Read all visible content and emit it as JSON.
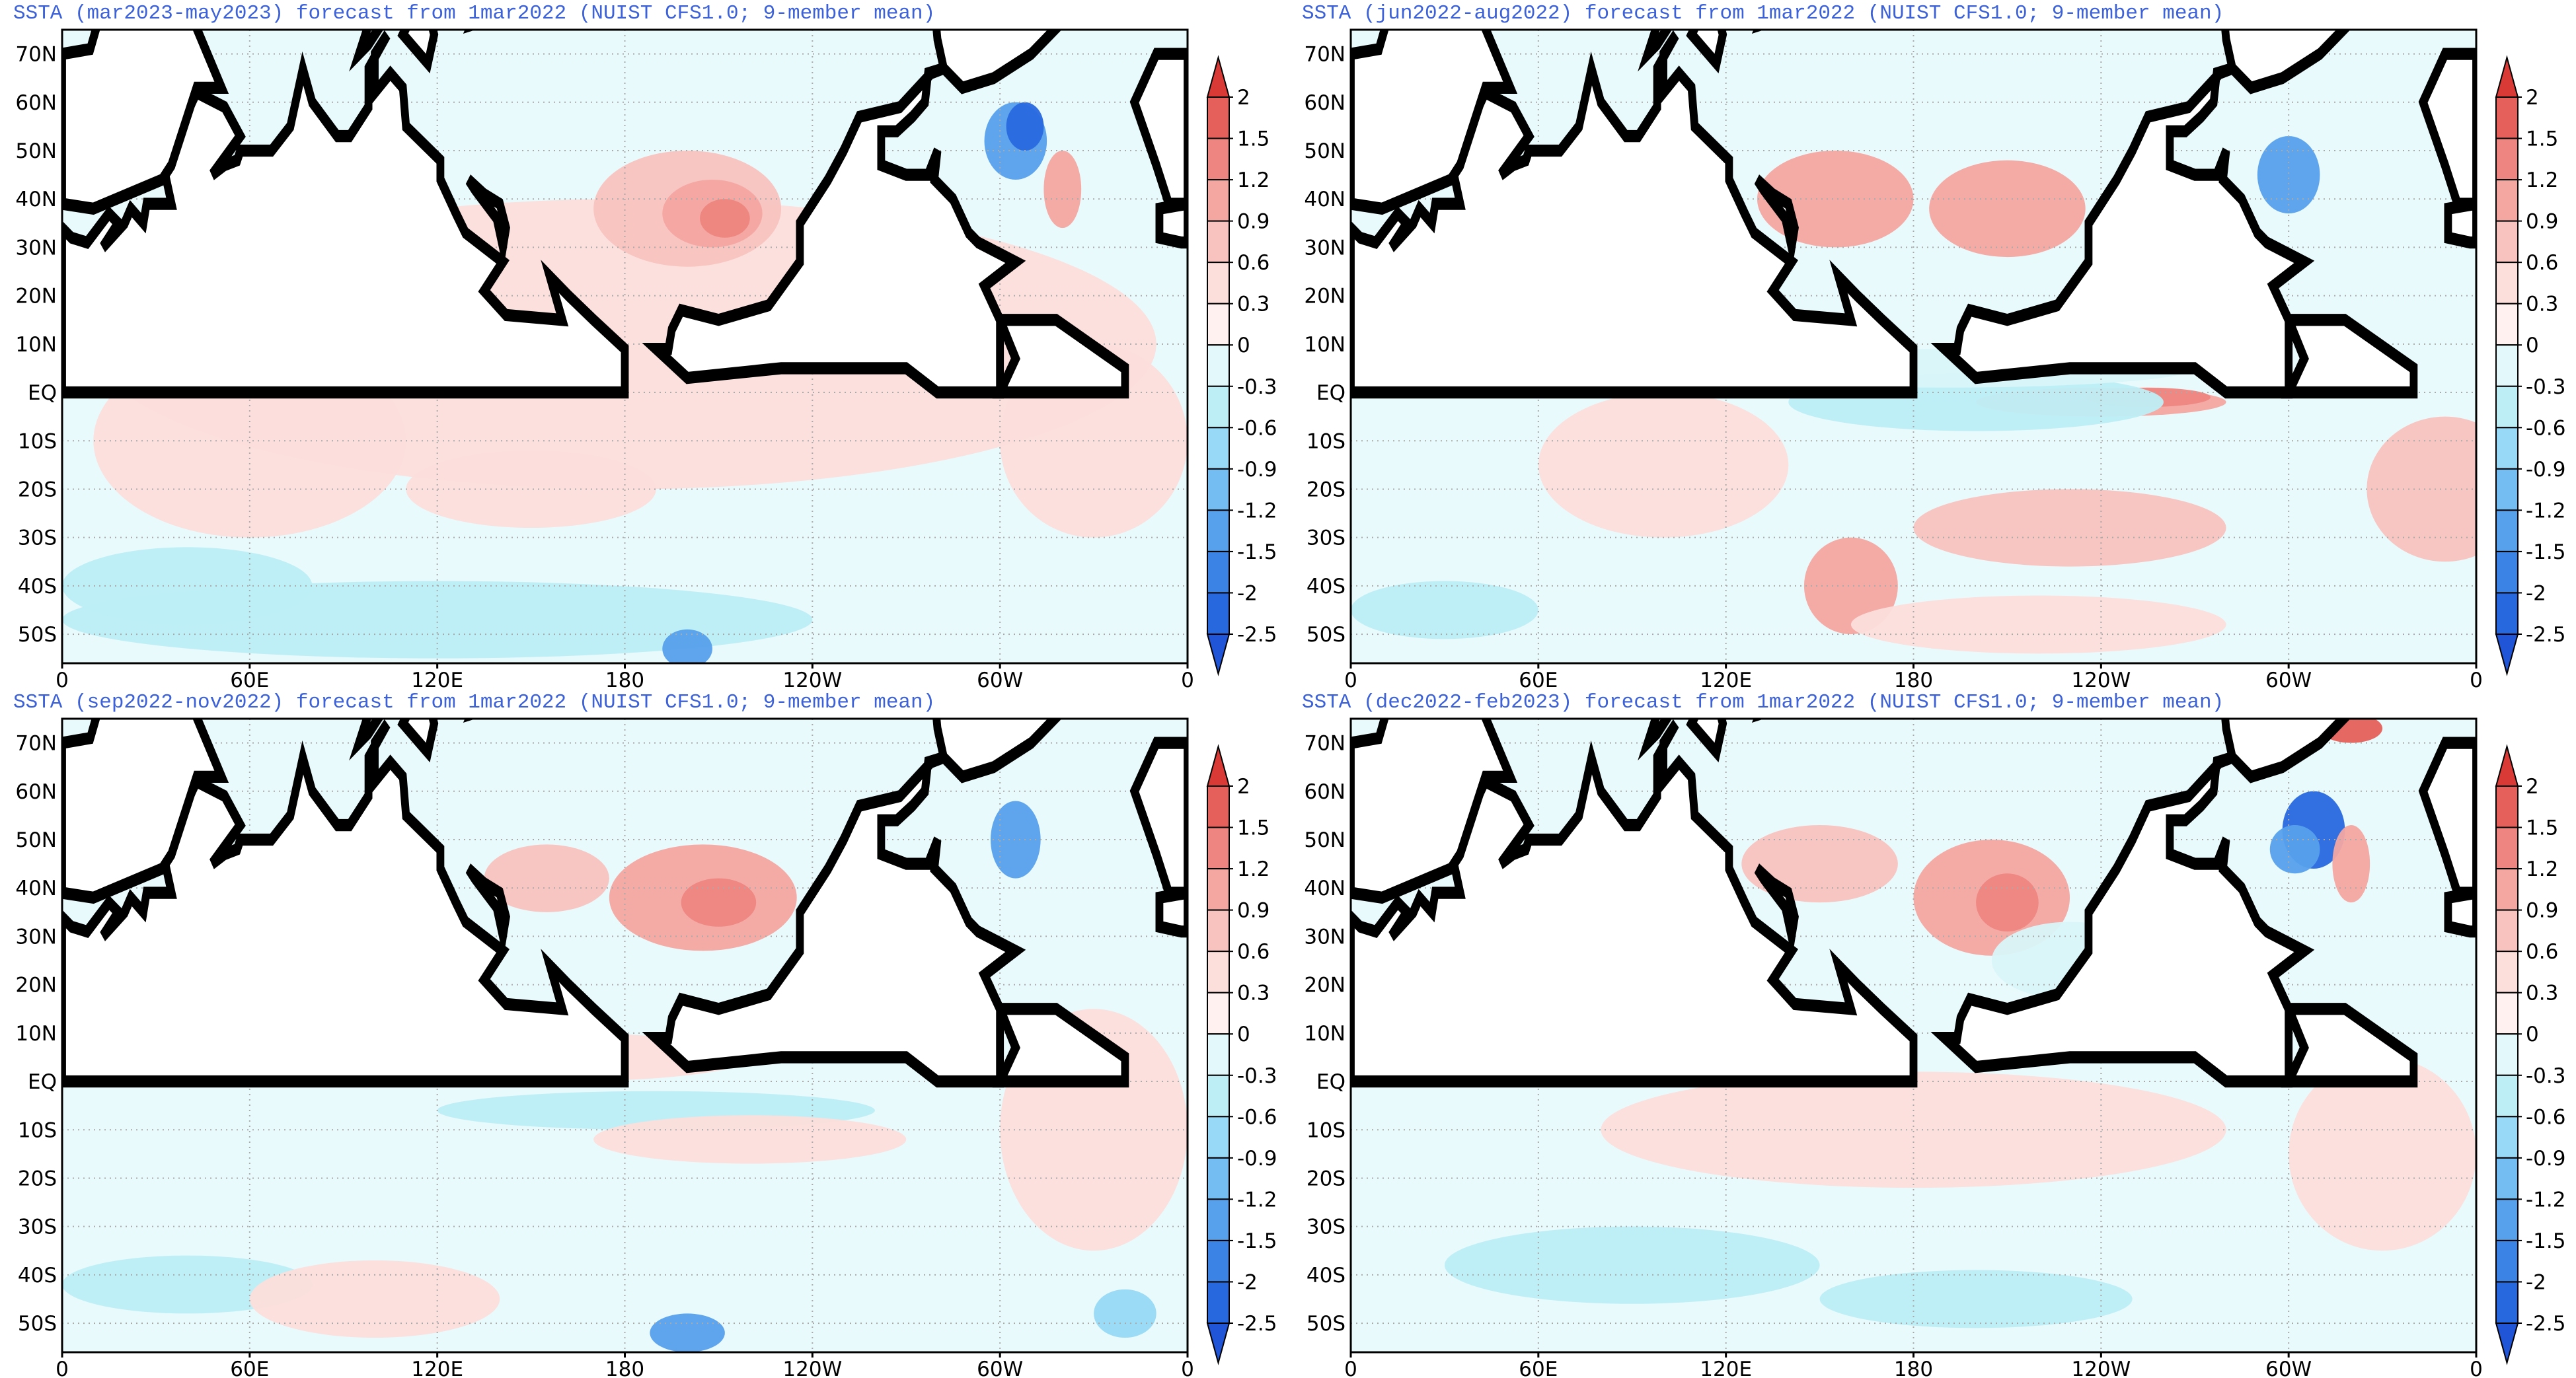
{
  "panels": [
    {
      "title": "SSTA (mar2023-may2023) forecast from 1mar2022 (NUIST CFS1.0; 9-member mean)"
    },
    {
      "title": "SSTA (jun2022-aug2022) forecast from 1mar2022 (NUIST CFS1.0; 9-member mean)"
    },
    {
      "title": "SSTA (sep2022-nov2022) forecast from 1mar2022 (NUIST CFS1.0; 9-member mean)"
    },
    {
      "title": "SSTA (dec2022-feb2023) forecast from 1mar2022 (NUIST CFS1.0; 9-member mean)"
    }
  ],
  "lat_labels": [
    "70N",
    "60N",
    "50N",
    "40N",
    "30N",
    "20N",
    "10N",
    "EQ",
    "10S",
    "20S",
    "30S",
    "40S",
    "50S"
  ],
  "lon_labels": [
    "0",
    "60E",
    "120E",
    "180",
    "120W",
    "60W",
    "0"
  ],
  "colorbar": {
    "levels": [
      2,
      1.5,
      1.2,
      0.9,
      0.6,
      0.3,
      0,
      -0.3,
      -0.6,
      -0.9,
      -1.2,
      -1.5,
      -2,
      -2.5
    ],
    "colors": [
      "#d93a36",
      "#e5605a",
      "#ee8580",
      "#f4a6a1",
      "#f8c3bf",
      "#fcdedb",
      "#fff1f0",
      "#e3f8fb",
      "#bdeef6",
      "#97d9f6",
      "#74bdf2",
      "#56a0ec",
      "#3c83e6",
      "#2868df",
      "#1f55d6"
    ]
  }
}
